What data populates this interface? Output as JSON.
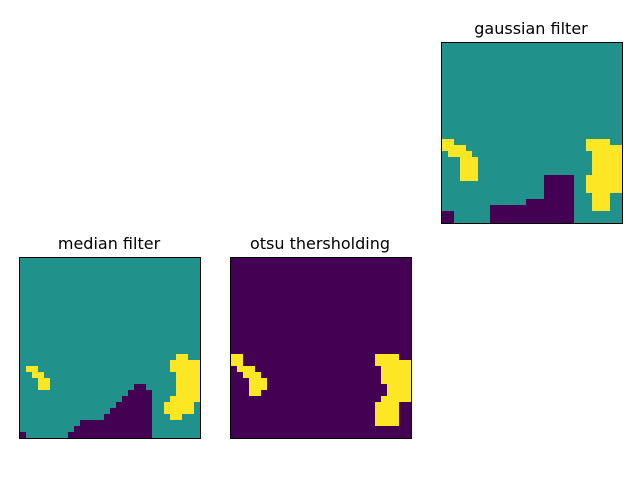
{
  "chart_data": [
    {
      "type": "heatmap",
      "title": "gaussian filter",
      "grid": "off",
      "xticks": "none",
      "yticks": "none",
      "colormap": [
        "#440154",
        "#21918c",
        "#fde725"
      ],
      "size": [
        30,
        30
      ],
      "regions": [
        {
          "class": 1,
          "rect": [
            0,
            0,
            30,
            30
          ]
        },
        {
          "class": 0,
          "rect": [
            0,
            28,
            2,
            2
          ]
        },
        {
          "class": 0,
          "rect": [
            8,
            27,
            9,
            3
          ]
        },
        {
          "class": 0,
          "rect": [
            14,
            26,
            3,
            1
          ]
        },
        {
          "class": 0,
          "rect": [
            17,
            25,
            4,
            5
          ]
        },
        {
          "class": 0,
          "rect": [
            17,
            22,
            5,
            8
          ]
        },
        {
          "class": 2,
          "rect": [
            0,
            16,
            2,
            2
          ]
        },
        {
          "class": 2,
          "rect": [
            1,
            17,
            3,
            2
          ]
        },
        {
          "class": 2,
          "rect": [
            3,
            18,
            2,
            3
          ]
        },
        {
          "class": 2,
          "rect": [
            3,
            19,
            3,
            4
          ]
        },
        {
          "class": 2,
          "rect": [
            24,
            16,
            4,
            2
          ]
        },
        {
          "class": 2,
          "rect": [
            25,
            17,
            5,
            8
          ]
        },
        {
          "class": 2,
          "rect": [
            24,
            22,
            4,
            3
          ]
        },
        {
          "class": 2,
          "rect": [
            25,
            25,
            3,
            3
          ]
        }
      ]
    },
    {
      "type": "heatmap",
      "title": "median filter",
      "grid": "off",
      "xticks": "none",
      "yticks": "none",
      "colormap": [
        "#440154",
        "#21918c",
        "#fde725"
      ],
      "size": [
        30,
        30
      ],
      "regions": [
        {
          "class": 1,
          "rect": [
            0,
            0,
            30,
            30
          ]
        },
        {
          "class": 0,
          "rect": [
            0,
            29,
            1,
            1
          ]
        },
        {
          "class": 0,
          "rect": [
            8,
            29,
            14,
            1
          ]
        },
        {
          "class": 0,
          "rect": [
            9,
            28,
            13,
            1
          ]
        },
        {
          "class": 0,
          "rect": [
            10,
            27,
            12,
            1
          ]
        },
        {
          "class": 0,
          "rect": [
            14,
            26,
            8,
            1
          ]
        },
        {
          "class": 0,
          "rect": [
            15,
            25,
            7,
            1
          ]
        },
        {
          "class": 0,
          "rect": [
            16,
            24,
            6,
            1
          ]
        },
        {
          "class": 0,
          "rect": [
            17,
            23,
            5,
            1
          ]
        },
        {
          "class": 0,
          "rect": [
            18,
            22,
            4,
            1
          ]
        },
        {
          "class": 0,
          "rect": [
            19,
            21,
            2,
            1
          ]
        },
        {
          "class": 2,
          "rect": [
            1,
            18,
            2,
            1
          ]
        },
        {
          "class": 2,
          "rect": [
            2,
            19,
            2,
            1
          ]
        },
        {
          "class": 2,
          "rect": [
            3,
            20,
            2,
            1
          ]
        },
        {
          "class": 2,
          "rect": [
            3,
            21,
            2,
            1
          ]
        },
        {
          "class": 2,
          "rect": [
            26,
            16,
            2,
            1
          ]
        },
        {
          "class": 2,
          "rect": [
            25,
            17,
            5,
            2
          ]
        },
        {
          "class": 2,
          "rect": [
            26,
            19,
            4,
            4
          ]
        },
        {
          "class": 2,
          "rect": [
            25,
            23,
            5,
            1
          ]
        },
        {
          "class": 2,
          "rect": [
            24,
            24,
            5,
            2
          ]
        },
        {
          "class": 2,
          "rect": [
            25,
            26,
            2,
            1
          ]
        }
      ]
    },
    {
      "type": "heatmap",
      "title": "otsu thersholding",
      "grid": "off",
      "xticks": "none",
      "yticks": "none",
      "colormap": [
        "#440154",
        "#21918c",
        "#fde725"
      ],
      "size": [
        30,
        30
      ],
      "regions": [
        {
          "class": 0,
          "rect": [
            0,
            0,
            30,
            30
          ]
        },
        {
          "class": 2,
          "rect": [
            0,
            16,
            2,
            2
          ]
        },
        {
          "class": 2,
          "rect": [
            1,
            18,
            3,
            1
          ]
        },
        {
          "class": 2,
          "rect": [
            2,
            19,
            3,
            1
          ]
        },
        {
          "class": 2,
          "rect": [
            3,
            20,
            3,
            2
          ]
        },
        {
          "class": 2,
          "rect": [
            3,
            22,
            2,
            1
          ]
        },
        {
          "class": 2,
          "rect": [
            24,
            16,
            4,
            2
          ]
        },
        {
          "class": 2,
          "rect": [
            25,
            17,
            5,
            4
          ]
        },
        {
          "class": 2,
          "rect": [
            26,
            21,
            4,
            2
          ]
        },
        {
          "class": 2,
          "rect": [
            25,
            23,
            5,
            1
          ]
        },
        {
          "class": 2,
          "rect": [
            24,
            24,
            4,
            4
          ]
        }
      ]
    }
  ]
}
